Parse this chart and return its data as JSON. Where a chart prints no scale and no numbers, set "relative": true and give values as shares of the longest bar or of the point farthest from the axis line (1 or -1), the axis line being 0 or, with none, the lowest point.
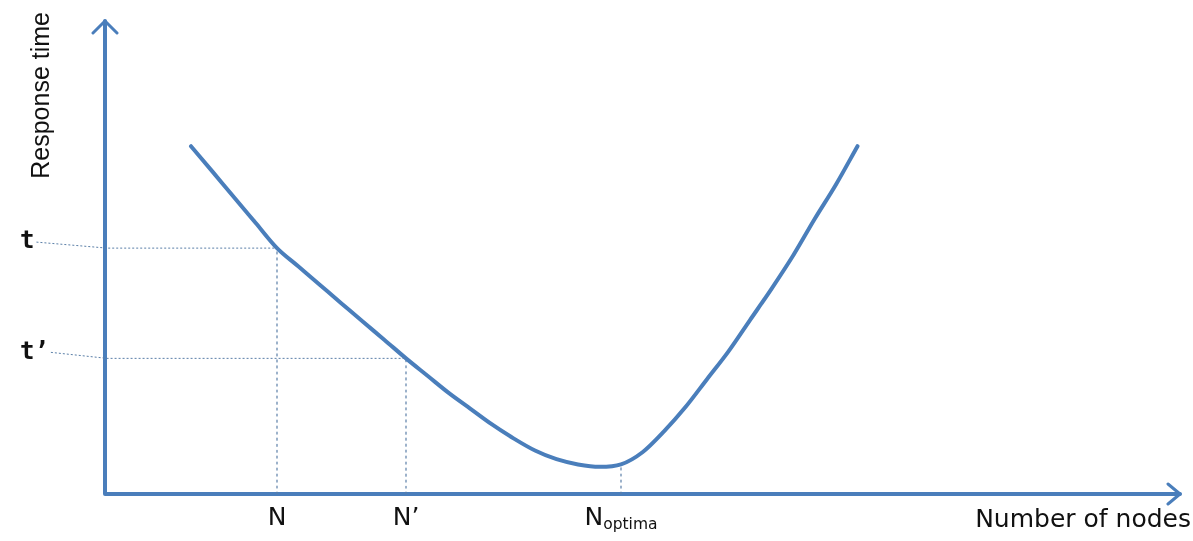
{
  "chart_data": {
    "type": "line",
    "relative": true,
    "xlabel": "Number of nodes",
    "ylabel": "Response time",
    "categories": [
      null,
      null,
      null,
      null,
      null,
      null,
      null,
      null,
      "N",
      null,
      null,
      null,
      null,
      null,
      "N’",
      null,
      null,
      null,
      null,
      null,
      null,
      null,
      null,
      null,
      "N$_{optima}$",
      null,
      null,
      null,
      null,
      null,
      null,
      null,
      null,
      null,
      null,
      null,
      null,
      null,
      null,
      null,
      null,
      null,
      null,
      null,
      null,
      null,
      null,
      null,
      null,
      null,
      null
    ],
    "series": [
      {
        "color": "#4a7ebb",
        "values": [
          null,
          null,
          null,
          null,
          1.0,
          0.927,
          0.853,
          0.78,
          0.707,
          0.654,
          0.601,
          0.548,
          0.495,
          0.443,
          0.39,
          0.34,
          0.29,
          0.245,
          0.2,
          0.16,
          0.125,
          0.1,
          0.085,
          0.078,
          0.085,
          0.12,
          0.18,
          0.25,
          0.33,
          0.41,
          0.5,
          0.59,
          0.685,
          0.79,
          0.89,
          1.0,
          null,
          null,
          null,
          null,
          null,
          null,
          null,
          null,
          null,
          null,
          null,
          null,
          null,
          null,
          null
        ]
      },
      {
        "type": "line",
        "color": "#5b7fa8",
        "line_style": "dotted",
        "x": [
          "N",
          "N"
        ],
        "values": [
          0,
          0.707
        ]
      },
      {
        "type": "line",
        "color": "#5b7fa8",
        "line_style": "dotted",
        "x": [
          "N’",
          "N’"
        ],
        "values": [
          0,
          0.39
        ]
      },
      {
        "type": "line",
        "color": "#5b7fa8",
        "line_style": "dotted",
        "x": [
          "N$_{optima}$",
          "N$_{optima}$"
        ],
        "values": [
          0,
          0.085
        ]
      }
    ],
    "annotations": [
      {
        "text": "t",
        "x": "N",
        "y": 0.707
      },
      {
        "text": "t’",
        "x": "N’",
        "y": 0.39
      }
    ],
    "marker": "none",
    "line_style": "solid",
    "legend": false
  }
}
